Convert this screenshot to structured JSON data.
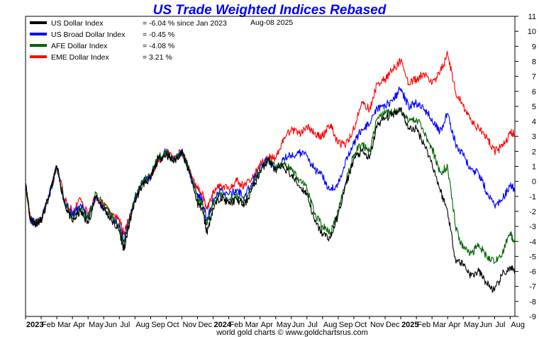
{
  "chart_data": {
    "type": "line",
    "title": "US Trade Weighted Indices Rebased",
    "date_label": "Aug-08  2025",
    "credit": "world gold charts © www.goldchartsrus.com",
    "xlabel": "",
    "ylabel": "",
    "ylim": [
      -9,
      11
    ],
    "yticks": [
      11,
      10,
      9,
      8,
      7,
      6,
      5,
      4,
      3,
      2,
      1,
      0,
      -1,
      -2,
      -3,
      -4,
      -5,
      -6,
      -7,
      -8,
      -9
    ],
    "grid": false,
    "legend_position": "top-left",
    "x_months_range": [
      0,
      31.3
    ],
    "x_tick_labels": [
      {
        "label": "2023",
        "month": 0,
        "bold": true
      },
      {
        "label": "Feb",
        "month": 1
      },
      {
        "label": "Mar",
        "month": 2
      },
      {
        "label": "Apr",
        "month": 3
      },
      {
        "label": "May",
        "month": 4
      },
      {
        "label": "Jun",
        "month": 5
      },
      {
        "label": "Jul",
        "month": 6
      },
      {
        "label": "Aug",
        "month": 7
      },
      {
        "label": "Sep",
        "month": 8
      },
      {
        "label": "Oct",
        "month": 9
      },
      {
        "label": "Nov",
        "month": 10
      },
      {
        "label": "Dec",
        "month": 11
      },
      {
        "label": "2024",
        "month": 12,
        "bold": true
      },
      {
        "label": "Feb",
        "month": 13
      },
      {
        "label": "Mar",
        "month": 14
      },
      {
        "label": "Apr",
        "month": 15
      },
      {
        "label": "May",
        "month": 16
      },
      {
        "label": "Jun",
        "month": 17
      },
      {
        "label": "Jul",
        "month": 18
      },
      {
        "label": "Aug",
        "month": 19
      },
      {
        "label": "Sep",
        "month": 20
      },
      {
        "label": "Oct",
        "month": 21
      },
      {
        "label": "Nov",
        "month": 22
      },
      {
        "label": "Dec",
        "month": 23
      },
      {
        "label": "2025",
        "month": 24,
        "bold": true
      },
      {
        "label": "Feb",
        "month": 25
      },
      {
        "label": "Mar",
        "month": 26
      },
      {
        "label": "Apr",
        "month": 27
      },
      {
        "label": "May",
        "month": 28
      },
      {
        "label": "Jun",
        "month": 29
      },
      {
        "label": "Jul",
        "month": 30
      },
      {
        "label": "Aug",
        "month": 31
      }
    ],
    "series": [
      {
        "name": "US Dollar Index",
        "stat": "= -6.04 % since Jan 2023",
        "color": "#000000",
        "points": [
          [
            0,
            -0.1
          ],
          [
            0.3,
            -2.5
          ],
          [
            0.6,
            -2.8
          ],
          [
            1,
            -2.6
          ],
          [
            1.5,
            -1.0
          ],
          [
            2,
            1.0
          ],
          [
            2.5,
            -1.5
          ],
          [
            3,
            -2.7
          ],
          [
            3.5,
            -2.0
          ],
          [
            4,
            -2.8
          ],
          [
            4.5,
            -1.0
          ],
          [
            5,
            -1.8
          ],
          [
            5.5,
            -2.6
          ],
          [
            6,
            -3.3
          ],
          [
            6.3,
            -4.6
          ],
          [
            6.6,
            -3.0
          ],
          [
            7,
            -1.3
          ],
          [
            7.5,
            -0.2
          ],
          [
            8,
            0.2
          ],
          [
            8.5,
            1.5
          ],
          [
            9,
            1.8
          ],
          [
            9.5,
            1.3
          ],
          [
            10,
            2.0
          ],
          [
            10.5,
            0.5
          ],
          [
            11,
            -1.5
          ],
          [
            11.3,
            -1.8
          ],
          [
            11.6,
            -3.4
          ],
          [
            12,
            -1.8
          ],
          [
            12.5,
            -1.0
          ],
          [
            13,
            -1.5
          ],
          [
            13.5,
            -1.2
          ],
          [
            14,
            -1.6
          ],
          [
            14.5,
            -0.5
          ],
          [
            15,
            0.6
          ],
          [
            15.5,
            1.5
          ],
          [
            16,
            0.7
          ],
          [
            16.5,
            1.0
          ],
          [
            17,
            0.4
          ],
          [
            17.5,
            -0.3
          ],
          [
            18,
            -0.8
          ],
          [
            18.5,
            -2.7
          ],
          [
            19,
            -3.5
          ],
          [
            19.5,
            -3.8
          ],
          [
            20,
            -2.2
          ],
          [
            20.5,
            -0.2
          ],
          [
            21,
            1.5
          ],
          [
            21.5,
            2.0
          ],
          [
            22,
            1.5
          ],
          [
            22.5,
            3.8
          ],
          [
            23,
            4.2
          ],
          [
            23.5,
            4.5
          ],
          [
            24,
            4.9
          ],
          [
            24.5,
            3.5
          ],
          [
            25,
            3.5
          ],
          [
            25.5,
            2.5
          ],
          [
            26,
            1.2
          ],
          [
            26.5,
            -0.5
          ],
          [
            27,
            -2.0
          ],
          [
            27.5,
            -5.2
          ],
          [
            28,
            -5.5
          ],
          [
            28.5,
            -6.3
          ],
          [
            29,
            -6.0
          ],
          [
            29.5,
            -6.8
          ],
          [
            30,
            -7.3
          ],
          [
            30.5,
            -6.2
          ],
          [
            31,
            -5.8
          ],
          [
            31.3,
            -6.04
          ]
        ]
      },
      {
        "name": "US Broad Dollar Index",
        "stat": "= -0.45 %",
        "color": "#0000ff",
        "points": [
          [
            0,
            -0.1
          ],
          [
            0.3,
            -2.5
          ],
          [
            0.6,
            -2.8
          ],
          [
            1,
            -2.6
          ],
          [
            1.5,
            -1.0
          ],
          [
            2,
            1.0
          ],
          [
            2.5,
            -1.3
          ],
          [
            3,
            -2.3
          ],
          [
            3.5,
            -1.5
          ],
          [
            4,
            -2.4
          ],
          [
            4.5,
            -1.0
          ],
          [
            5,
            -1.8
          ],
          [
            5.5,
            -2.4
          ],
          [
            6,
            -3.0
          ],
          [
            6.3,
            -3.9
          ],
          [
            6.6,
            -2.8
          ],
          [
            7,
            -1.2
          ],
          [
            7.5,
            0.0
          ],
          [
            8,
            0.3
          ],
          [
            8.5,
            1.5
          ],
          [
            9,
            2.0
          ],
          [
            9.5,
            1.5
          ],
          [
            10,
            2.0
          ],
          [
            10.5,
            0.6
          ],
          [
            11,
            -0.8
          ],
          [
            11.3,
            -1.2
          ],
          [
            11.6,
            -2.6
          ],
          [
            12,
            -1.3
          ],
          [
            12.5,
            -0.6
          ],
          [
            13,
            -0.9
          ],
          [
            13.5,
            -0.6
          ],
          [
            14,
            -1.0
          ],
          [
            14.5,
            -0.1
          ],
          [
            15,
            0.9
          ],
          [
            15.5,
            1.5
          ],
          [
            16,
            0.8
          ],
          [
            16.5,
            1.6
          ],
          [
            17,
            1.7
          ],
          [
            17.5,
            1.9
          ],
          [
            18,
            1.7
          ],
          [
            18.5,
            0.8
          ],
          [
            19,
            0.3
          ],
          [
            19.5,
            -0.6
          ],
          [
            20,
            -0.2
          ],
          [
            20.5,
            1.5
          ],
          [
            21,
            2.5
          ],
          [
            21.5,
            3.5
          ],
          [
            22,
            3.8
          ],
          [
            22.5,
            4.8
          ],
          [
            23,
            5.1
          ],
          [
            23.5,
            5.4
          ],
          [
            24,
            6.2
          ],
          [
            24.5,
            5.0
          ],
          [
            25,
            5.2
          ],
          [
            25.5,
            4.8
          ],
          [
            26,
            4.2
          ],
          [
            26.5,
            3.3
          ],
          [
            27,
            4.5
          ],
          [
            27.5,
            2.5
          ],
          [
            28,
            1.7
          ],
          [
            28.5,
            0.8
          ],
          [
            29,
            0.5
          ],
          [
            29.5,
            -0.7
          ],
          [
            30,
            -1.6
          ],
          [
            30.5,
            -1.2
          ],
          [
            31,
            -0.3
          ],
          [
            31.3,
            -0.45
          ]
        ]
      },
      {
        "name": "AFE Dollar Index",
        "stat": "= -4.08 %",
        "color": "#006400",
        "points": [
          [
            0,
            -0.1
          ],
          [
            0.3,
            -2.5
          ],
          [
            0.6,
            -2.8
          ],
          [
            1,
            -2.6
          ],
          [
            1.5,
            -1.0
          ],
          [
            2,
            1.0
          ],
          [
            2.5,
            -1.5
          ],
          [
            3,
            -2.5
          ],
          [
            3.5,
            -1.8
          ],
          [
            4,
            -2.5
          ],
          [
            4.5,
            -0.8
          ],
          [
            5,
            -1.6
          ],
          [
            5.5,
            -2.3
          ],
          [
            6,
            -3.0
          ],
          [
            6.3,
            -4.2
          ],
          [
            6.6,
            -2.8
          ],
          [
            7,
            -1.0
          ],
          [
            7.5,
            0.0
          ],
          [
            8,
            0.4
          ],
          [
            8.5,
            1.6
          ],
          [
            9,
            1.9
          ],
          [
            9.5,
            1.4
          ],
          [
            10,
            2.0
          ],
          [
            10.5,
            0.7
          ],
          [
            11,
            -1.2
          ],
          [
            11.3,
            -1.5
          ],
          [
            11.6,
            -2.9
          ],
          [
            12,
            -1.4
          ],
          [
            12.5,
            -0.8
          ],
          [
            13,
            -1.2
          ],
          [
            13.5,
            -0.9
          ],
          [
            14,
            -1.3
          ],
          [
            14.5,
            -0.3
          ],
          [
            15,
            0.8
          ],
          [
            15.5,
            1.4
          ],
          [
            16,
            0.9
          ],
          [
            16.5,
            1.2
          ],
          [
            17,
            0.8
          ],
          [
            17.5,
            0.1
          ],
          [
            18,
            -0.5
          ],
          [
            18.5,
            -2.2
          ],
          [
            19,
            -3.0
          ],
          [
            19.5,
            -3.5
          ],
          [
            20,
            -2.0
          ],
          [
            20.5,
            0.0
          ],
          [
            21,
            1.8
          ],
          [
            21.5,
            2.5
          ],
          [
            22,
            2.0
          ],
          [
            22.5,
            4.2
          ],
          [
            23,
            4.5
          ],
          [
            23.5,
            4.6
          ],
          [
            24,
            4.8
          ],
          [
            24.5,
            4.0
          ],
          [
            25,
            4.2
          ],
          [
            25.5,
            3.2
          ],
          [
            26,
            2.2
          ],
          [
            26.5,
            0.6
          ],
          [
            27,
            1.0
          ],
          [
            27.5,
            -3.0
          ],
          [
            28,
            -4.5
          ],
          [
            28.5,
            -4.8
          ],
          [
            29,
            -4.2
          ],
          [
            29.5,
            -5.0
          ],
          [
            30,
            -5.4
          ],
          [
            30.5,
            -4.8
          ],
          [
            31,
            -3.4
          ],
          [
            31.3,
            -4.08
          ]
        ]
      },
      {
        "name": "EME Dollar Index",
        "stat": "= 3.21 %",
        "color": "#ff0000",
        "points": [
          [
            0,
            -0.1
          ],
          [
            0.3,
            -2.5
          ],
          [
            0.6,
            -2.8
          ],
          [
            1,
            -2.6
          ],
          [
            1.5,
            -1.0
          ],
          [
            2,
            1.0
          ],
          [
            2.5,
            -1.2
          ],
          [
            3,
            -2.0
          ],
          [
            3.5,
            -1.2
          ],
          [
            4,
            -2.2
          ],
          [
            4.5,
            -1.0
          ],
          [
            5,
            -1.6
          ],
          [
            5.5,
            -2.1
          ],
          [
            6,
            -2.6
          ],
          [
            6.3,
            -3.4
          ],
          [
            6.6,
            -2.6
          ],
          [
            7,
            -1.3
          ],
          [
            7.5,
            0.0
          ],
          [
            8,
            0.4
          ],
          [
            8.5,
            1.3
          ],
          [
            9,
            2.0
          ],
          [
            9.5,
            1.6
          ],
          [
            10,
            2.0
          ],
          [
            10.5,
            0.6
          ],
          [
            11,
            -0.5
          ],
          [
            11.3,
            -0.8
          ],
          [
            11.6,
            -1.8
          ],
          [
            12,
            -0.8
          ],
          [
            12.5,
            -0.2
          ],
          [
            13,
            -0.5
          ],
          [
            13.5,
            0.0
          ],
          [
            14,
            -0.3
          ],
          [
            14.5,
            0.2
          ],
          [
            15,
            1.1
          ],
          [
            15.5,
            1.6
          ],
          [
            16,
            1.5
          ],
          [
            16.5,
            2.8
          ],
          [
            17,
            3.5
          ],
          [
            17.5,
            3.2
          ],
          [
            18,
            3.6
          ],
          [
            18.5,
            3.2
          ],
          [
            19,
            3.0
          ],
          [
            19.5,
            3.8
          ],
          [
            20,
            2.5
          ],
          [
            20.5,
            2.5
          ],
          [
            21,
            3.5
          ],
          [
            21.5,
            5.3
          ],
          [
            22,
            4.8
          ],
          [
            22.5,
            6.5
          ],
          [
            23,
            6.8
          ],
          [
            23.5,
            7.5
          ],
          [
            24,
            8.0
          ],
          [
            24.5,
            6.5
          ],
          [
            25,
            6.8
          ],
          [
            25.5,
            7.2
          ],
          [
            26,
            6.5
          ],
          [
            26.5,
            7.2
          ],
          [
            27,
            8.5
          ],
          [
            27.5,
            6.0
          ],
          [
            28,
            5.0
          ],
          [
            28.5,
            4.0
          ],
          [
            29,
            3.5
          ],
          [
            29.5,
            3.0
          ],
          [
            30,
            2.0
          ],
          [
            30.5,
            2.3
          ],
          [
            31,
            3.2
          ],
          [
            31.3,
            3.21
          ]
        ]
      }
    ]
  }
}
